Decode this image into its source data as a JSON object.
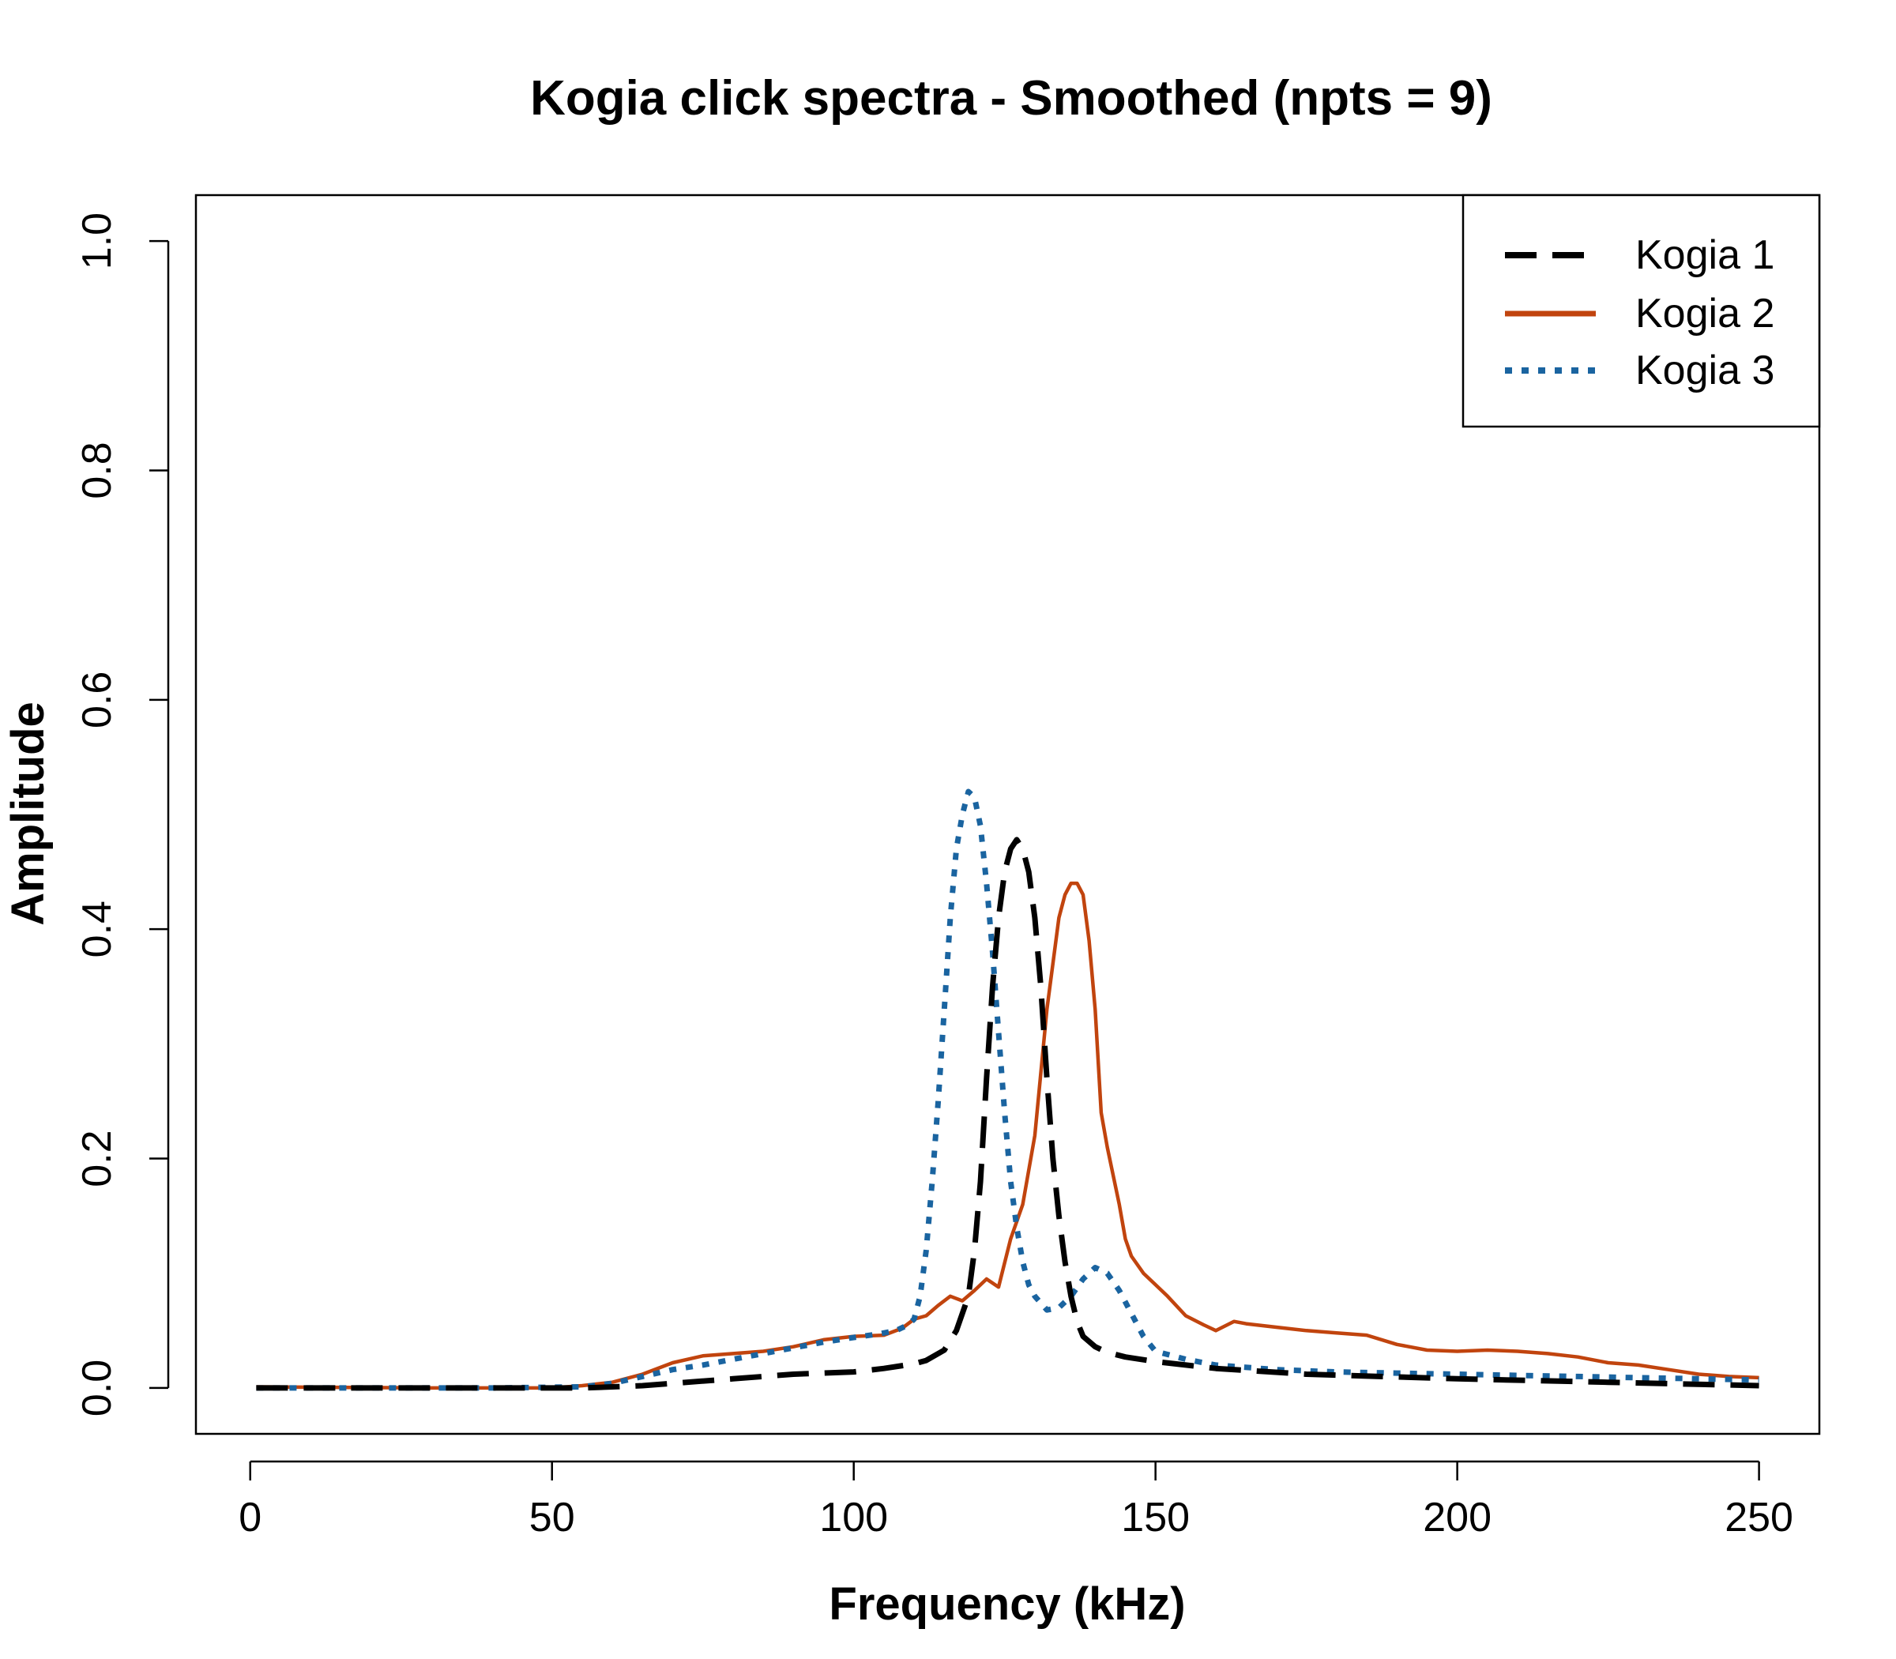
{
  "chart_data": {
    "type": "line",
    "title": "Kogia click spectra - Smoothed (npts = 9)",
    "xlabel": "Frequency (kHz)",
    "ylabel": "Amplitude",
    "xlim": [
      -9,
      260
    ],
    "ylim": [
      -0.04,
      1.04
    ],
    "xticks": [
      0,
      50,
      100,
      150,
      200,
      250
    ],
    "xtick_labels": [
      "0",
      "50",
      "100",
      "150",
      "200",
      "250"
    ],
    "yticks": [
      0.0,
      0.2,
      0.4,
      0.6,
      0.8,
      1.0
    ],
    "ytick_labels": [
      "0.0",
      "0.2",
      "0.4",
      "0.6",
      "0.8",
      "1.0"
    ],
    "grid": false,
    "legend": {
      "position": "top-right"
    },
    "series": [
      {
        "name": "Kogia 1",
        "color": "#000000",
        "line_style": "dashed",
        "x": [
          1,
          20,
          40,
          55,
          60,
          65,
          70,
          80,
          90,
          100,
          105,
          110,
          112,
          115,
          117,
          119,
          120,
          121,
          122,
          123,
          124,
          125,
          126,
          127,
          128,
          129,
          130,
          131,
          132,
          133,
          134,
          135,
          136,
          137,
          138,
          140,
          142,
          145,
          150,
          160,
          175,
          200,
          225,
          250
        ],
        "y": [
          0.0,
          0.0,
          0.0,
          0.0,
          0.001,
          0.002,
          0.004,
          0.008,
          0.012,
          0.014,
          0.017,
          0.021,
          0.024,
          0.033,
          0.05,
          0.08,
          0.12,
          0.18,
          0.27,
          0.35,
          0.41,
          0.45,
          0.47,
          0.478,
          0.47,
          0.45,
          0.41,
          0.35,
          0.27,
          0.2,
          0.15,
          0.11,
          0.08,
          0.058,
          0.045,
          0.036,
          0.031,
          0.027,
          0.023,
          0.017,
          0.012,
          0.008,
          0.005,
          0.002
        ]
      },
      {
        "name": "Kogia 2",
        "color": "#c1440e",
        "line_style": "solid",
        "x": [
          1,
          30,
          50,
          55,
          60,
          65,
          70,
          75,
          80,
          85,
          90,
          95,
          100,
          105,
          108,
          110,
          112,
          114,
          116,
          118,
          120,
          122,
          124,
          126,
          128,
          130,
          132,
          134,
          135,
          136,
          137,
          138,
          139,
          140,
          141,
          142,
          143,
          144,
          145,
          146,
          148,
          150,
          152,
          155,
          158,
          160,
          163,
          165,
          170,
          175,
          180,
          185,
          190,
          195,
          200,
          205,
          210,
          215,
          220,
          225,
          230,
          235,
          240,
          245,
          250
        ],
        "y": [
          0.001,
          0.0,
          0.0,
          0.002,
          0.005,
          0.012,
          0.022,
          0.028,
          0.03,
          0.032,
          0.036,
          0.042,
          0.045,
          0.046,
          0.052,
          0.06,
          0.063,
          0.072,
          0.08,
          0.076,
          0.085,
          0.095,
          0.088,
          0.13,
          0.16,
          0.22,
          0.33,
          0.41,
          0.43,
          0.44,
          0.44,
          0.43,
          0.39,
          0.33,
          0.24,
          0.21,
          0.185,
          0.16,
          0.13,
          0.115,
          0.1,
          0.09,
          0.08,
          0.063,
          0.055,
          0.05,
          0.058,
          0.056,
          0.053,
          0.05,
          0.048,
          0.046,
          0.038,
          0.033,
          0.032,
          0.033,
          0.032,
          0.03,
          0.027,
          0.022,
          0.02,
          0.016,
          0.012,
          0.01,
          0.009
        ]
      },
      {
        "name": "Kogia 3",
        "color": "#1a64a0",
        "line_style": "dotted",
        "x": [
          1,
          20,
          40,
          55,
          60,
          65,
          70,
          75,
          80,
          85,
          90,
          95,
          100,
          104,
          107,
          109,
          110,
          111,
          112,
          113,
          114,
          115,
          116,
          117,
          118,
          119,
          120,
          121,
          122,
          123,
          124,
          125,
          126,
          127,
          128,
          129,
          130,
          132,
          134,
          136,
          138,
          140,
          142,
          144,
          146,
          148,
          150,
          155,
          160,
          170,
          180,
          190,
          200,
          210,
          220,
          230,
          240,
          250
        ],
        "y": [
          0.0,
          0.0,
          0.0,
          0.001,
          0.004,
          0.01,
          0.016,
          0.02,
          0.025,
          0.03,
          0.035,
          0.04,
          0.044,
          0.047,
          0.05,
          0.055,
          0.06,
          0.08,
          0.12,
          0.18,
          0.25,
          0.33,
          0.41,
          0.47,
          0.5,
          0.52,
          0.515,
          0.49,
          0.44,
          0.38,
          0.31,
          0.24,
          0.18,
          0.14,
          0.11,
          0.09,
          0.08,
          0.068,
          0.07,
          0.08,
          0.095,
          0.105,
          0.1,
          0.085,
          0.065,
          0.045,
          0.032,
          0.025,
          0.02,
          0.016,
          0.014,
          0.013,
          0.012,
          0.011,
          0.01,
          0.009,
          0.008,
          0.007
        ]
      }
    ]
  }
}
